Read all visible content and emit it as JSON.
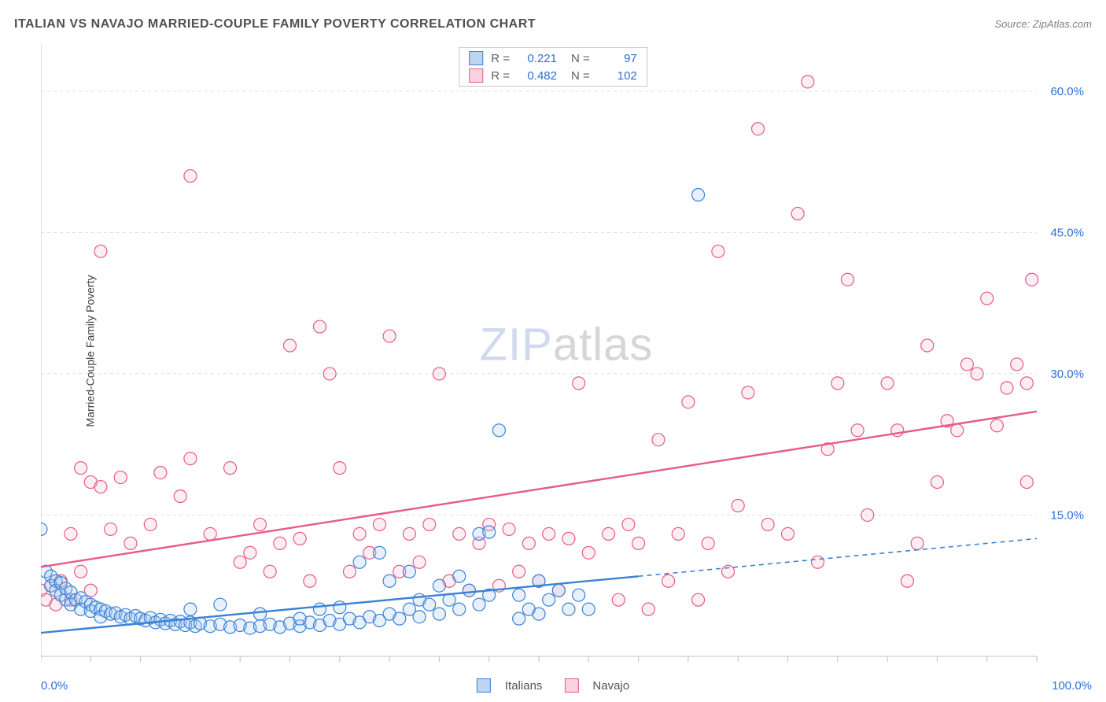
{
  "header": {
    "title": "ITALIAN VS NAVAJO MARRIED-COUPLE FAMILY POVERTY CORRELATION CHART",
    "source_prefix": "Source: ",
    "source_name": "ZipAtlas.com"
  },
  "ylabel": "Married-Couple Family Poverty",
  "watermark": {
    "part1": "ZIP",
    "part2": "atlas"
  },
  "chart": {
    "type": "scatter",
    "xlim": [
      0,
      100
    ],
    "ylim": [
      0,
      65
    ],
    "x_ticks_minor_step": 5,
    "y_gridlines": [
      15,
      30,
      45,
      60
    ],
    "y_tick_labels": [
      "15.0%",
      "30.0%",
      "45.0%",
      "60.0%"
    ],
    "x_tick_labels": {
      "min": "0.0%",
      "max": "100.0%"
    },
    "background_color": "#ffffff",
    "grid_color": "#dddddd",
    "grid_dash": "4,4",
    "axis_color": "#bfbfbf",
    "tick_color": "#bfbfbf",
    "marker_radius": 8,
    "marker_stroke_width": 1.2,
    "marker_fill_opacity": 0.28,
    "trend_line_width": 2.4,
    "trend_dash_width": 1.6,
    "trend_dash_pattern": "6,5"
  },
  "series": [
    {
      "key": "italians",
      "label": "Italians",
      "color_stroke": "#3b82d6",
      "color_fill": "#a9c8ef",
      "swatch_fill": "#bdd4f2",
      "swatch_border": "#3b82d6",
      "R": "0.221",
      "N": "97",
      "trend": {
        "x1": 0,
        "y1": 2.5,
        "x2_solid": 60,
        "y2_solid": 8.5,
        "x2": 100,
        "y2": 12.5
      },
      "points": [
        [
          0,
          13.5
        ],
        [
          0.5,
          9
        ],
        [
          1,
          8.5
        ],
        [
          1,
          7.5
        ],
        [
          1.5,
          8
        ],
        [
          1.5,
          7
        ],
        [
          2,
          7.8
        ],
        [
          2,
          6.5
        ],
        [
          2.5,
          7.2
        ],
        [
          2.5,
          6
        ],
        [
          3,
          6.8
        ],
        [
          3,
          5.5
        ],
        [
          3.5,
          6
        ],
        [
          4,
          6.2
        ],
        [
          4,
          5
        ],
        [
          4.5,
          5.8
        ],
        [
          5,
          5.5
        ],
        [
          5,
          4.8
        ],
        [
          5.5,
          5.2
        ],
        [
          6,
          5
        ],
        [
          6,
          4.2
        ],
        [
          6.5,
          4.8
        ],
        [
          7,
          4.5
        ],
        [
          7.5,
          4.6
        ],
        [
          8,
          4.2
        ],
        [
          8.5,
          4.4
        ],
        [
          9,
          4
        ],
        [
          9.5,
          4.3
        ],
        [
          10,
          4
        ],
        [
          10.5,
          3.8
        ],
        [
          11,
          4.1
        ],
        [
          11.5,
          3.6
        ],
        [
          12,
          3.9
        ],
        [
          12.5,
          3.5
        ],
        [
          13,
          3.8
        ],
        [
          13.5,
          3.4
        ],
        [
          14,
          3.7
        ],
        [
          14.5,
          3.3
        ],
        [
          15,
          3.6
        ],
        [
          15.5,
          3.2
        ],
        [
          16,
          3.5
        ],
        [
          17,
          3.2
        ],
        [
          18,
          3.4
        ],
        [
          19,
          3.1
        ],
        [
          20,
          3.3
        ],
        [
          21,
          3
        ],
        [
          22,
          3.2
        ],
        [
          23,
          3.4
        ],
        [
          24,
          3.1
        ],
        [
          25,
          3.5
        ],
        [
          26,
          3.2
        ],
        [
          27,
          3.6
        ],
        [
          28,
          3.3
        ],
        [
          29,
          3.8
        ],
        [
          30,
          3.4
        ],
        [
          31,
          4
        ],
        [
          32,
          3.6
        ],
        [
          33,
          4.2
        ],
        [
          34,
          3.8
        ],
        [
          35,
          4.5
        ],
        [
          36,
          4
        ],
        [
          37,
          5
        ],
        [
          38,
          4.2
        ],
        [
          39,
          5.5
        ],
        [
          40,
          4.5
        ],
        [
          41,
          6
        ],
        [
          42,
          5
        ],
        [
          43,
          7
        ],
        [
          44,
          5.5
        ],
        [
          45,
          6.5
        ],
        [
          35,
          8
        ],
        [
          37,
          9
        ],
        [
          40,
          7.5
        ],
        [
          42,
          8.5
        ],
        [
          44,
          13
        ],
        [
          45,
          13.2
        ],
        [
          32,
          10
        ],
        [
          34,
          11
        ],
        [
          48,
          4
        ],
        [
          49,
          5
        ],
        [
          50,
          4.5
        ],
        [
          51,
          6
        ],
        [
          52,
          7
        ],
        [
          53,
          5
        ],
        [
          54,
          6.5
        ],
        [
          46,
          24
        ],
        [
          50,
          8
        ],
        [
          48,
          6.5
        ],
        [
          38,
          6
        ],
        [
          28,
          5
        ],
        [
          15,
          5
        ],
        [
          18,
          5.5
        ],
        [
          22,
          4.5
        ],
        [
          26,
          4
        ],
        [
          30,
          5.2
        ],
        [
          55,
          5
        ],
        [
          66,
          49
        ]
      ]
    },
    {
      "key": "navajo",
      "label": "Navajo",
      "color_stroke": "#e75a8a",
      "color_fill": "#f6c1d2",
      "swatch_fill": "#f9d3df",
      "swatch_border": "#e75a8a",
      "R": "0.482",
      "N": "102",
      "trend": {
        "x1": 0,
        "y1": 9.5,
        "x2_solid": 100,
        "y2_solid": 26,
        "x2": 100,
        "y2": 26
      },
      "points": [
        [
          0,
          7
        ],
        [
          0.5,
          6
        ],
        [
          1,
          7.5
        ],
        [
          1.5,
          5.5
        ],
        [
          2,
          8
        ],
        [
          3,
          6
        ],
        [
          4,
          9
        ],
        [
          5,
          7
        ],
        [
          4,
          20
        ],
        [
          5,
          18.5
        ],
        [
          6,
          18
        ],
        [
          7,
          13.5
        ],
        [
          3,
          13
        ],
        [
          8,
          19
        ],
        [
          9,
          12
        ],
        [
          6,
          43
        ],
        [
          11,
          14
        ],
        [
          12,
          19.5
        ],
        [
          14,
          17
        ],
        [
          15,
          21
        ],
        [
          15,
          51
        ],
        [
          17,
          13
        ],
        [
          19,
          20
        ],
        [
          20,
          10
        ],
        [
          21,
          11
        ],
        [
          22,
          14
        ],
        [
          23,
          9
        ],
        [
          24,
          12
        ],
        [
          25,
          33
        ],
        [
          26,
          12.5
        ],
        [
          27,
          8
        ],
        [
          28,
          35
        ],
        [
          29,
          30
        ],
        [
          30,
          20
        ],
        [
          31,
          9
        ],
        [
          32,
          13
        ],
        [
          33,
          11
        ],
        [
          34,
          14
        ],
        [
          35,
          34
        ],
        [
          36,
          9
        ],
        [
          37,
          13
        ],
        [
          38,
          10
        ],
        [
          39,
          14
        ],
        [
          40,
          30
        ],
        [
          41,
          8
        ],
        [
          42,
          13
        ],
        [
          43,
          7
        ],
        [
          44,
          12
        ],
        [
          45,
          14
        ],
        [
          46,
          7.5
        ],
        [
          47,
          13.5
        ],
        [
          48,
          9
        ],
        [
          49,
          12
        ],
        [
          50,
          8
        ],
        [
          51,
          13
        ],
        [
          52,
          7
        ],
        [
          53,
          12.5
        ],
        [
          54,
          29
        ],
        [
          55,
          11
        ],
        [
          57,
          13
        ],
        [
          58,
          6
        ],
        [
          59,
          14
        ],
        [
          60,
          12
        ],
        [
          61,
          5
        ],
        [
          62,
          23
        ],
        [
          63,
          8
        ],
        [
          64,
          13
        ],
        [
          65,
          27
        ],
        [
          66,
          6
        ],
        [
          67,
          12
        ],
        [
          68,
          43
        ],
        [
          69,
          9
        ],
        [
          70,
          16
        ],
        [
          71,
          28
        ],
        [
          72,
          56
        ],
        [
          73,
          14
        ],
        [
          75,
          13
        ],
        [
          76,
          47
        ],
        [
          77,
          61
        ],
        [
          78,
          10
        ],
        [
          79,
          22
        ],
        [
          80,
          29
        ],
        [
          81,
          40
        ],
        [
          82,
          24
        ],
        [
          83,
          15
        ],
        [
          85,
          29
        ],
        [
          86,
          24
        ],
        [
          87,
          8
        ],
        [
          88,
          12
        ],
        [
          89,
          33
        ],
        [
          90,
          18.5
        ],
        [
          91,
          25
        ],
        [
          92,
          24
        ],
        [
          93,
          31
        ],
        [
          94,
          30
        ],
        [
          95,
          38
        ],
        [
          96,
          24.5
        ],
        [
          97,
          28.5
        ],
        [
          98,
          31
        ],
        [
          99,
          29
        ],
        [
          99,
          18.5
        ],
        [
          99.5,
          40
        ]
      ]
    }
  ],
  "stats_box": {
    "R_label": "R =",
    "N_label": "N =",
    "value_color": "#2a6fd6"
  },
  "bottom_legend_order": [
    "italians",
    "navajo"
  ]
}
